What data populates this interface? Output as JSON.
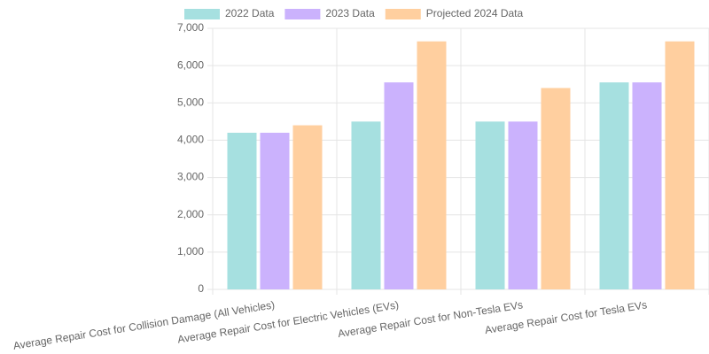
{
  "chart_data": {
    "type": "bar",
    "categories": [
      "Average Repair Cost for Collision Damage (All Vehicles)",
      "Average Repair Cost for Electric Vehicles (EVs)",
      "Average Repair Cost for Non-Tesla EVs",
      "Average Repair Cost for Tesla EVs"
    ],
    "series": [
      {
        "name": "2022 Data",
        "color": "#a6e0e0",
        "values": [
          4200,
          4500,
          4500,
          5550
        ]
      },
      {
        "name": "2023 Data",
        "color": "#cbb2fd",
        "values": [
          4200,
          5550,
          4500,
          5550
        ]
      },
      {
        "name": "Projected 2024 Data",
        "color": "#ffcf9f",
        "values": [
          4400,
          6650,
          5400,
          6650
        ]
      }
    ],
    "ylim": [
      0,
      7000
    ],
    "yticks": [
      0,
      {
        "value": 1000,
        "label": "1,000"
      },
      {
        "value": 2000,
        "label": "2,000"
      },
      {
        "value": 3000,
        "label": "3,000"
      },
      {
        "value": 4000,
        "label": "4,000"
      },
      {
        "value": 5000,
        "label": "5,000"
      },
      {
        "value": 6000,
        "label": "6,000"
      },
      {
        "value": 7000,
        "label": "7,000"
      }
    ],
    "grid": true,
    "legend": "top"
  }
}
